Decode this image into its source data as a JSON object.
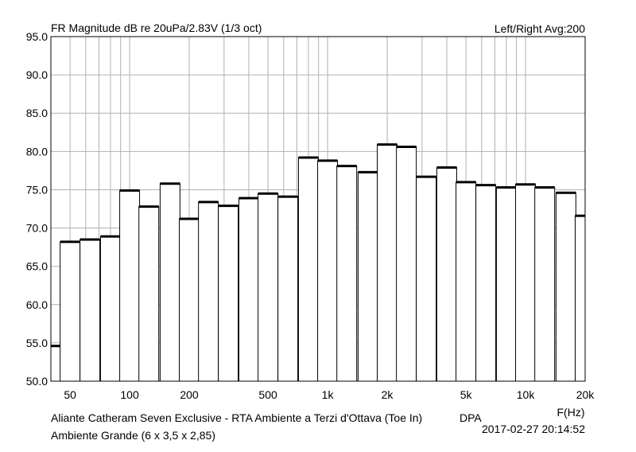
{
  "header": {
    "title": "FR Magnitude dB re 20uPa/2.83V (1/3 oct)",
    "channel_info": "Left/Right  Avg:200"
  },
  "footer": {
    "line1": "Aliante Catheram Seven Exclusive - RTA Ambiente a Terzi d'Ottava  (Toe In)",
    "mic": "DPA",
    "line2": "Ambiente Grande (6 x 3,5 x 2,85)",
    "timestamp": "2017-02-27  20:14:52"
  },
  "chart_data": {
    "type": "bar",
    "title": "FR Magnitude dB re 20uPa/2.83V (1/3 oct)",
    "xlabel": "F(Hz)",
    "ylabel": "",
    "x_scale": "log",
    "xlim": [
      40,
      20000
    ],
    "ylim": [
      50,
      95
    ],
    "y_ticks": [
      "50.0",
      "55.0",
      "60.0",
      "65.0",
      "70.0",
      "75.0",
      "80.0",
      "85.0",
      "90.0",
      "95.0"
    ],
    "x_ticks": [
      {
        "value": 50,
        "label": "50"
      },
      {
        "value": 100,
        "label": "100"
      },
      {
        "value": 200,
        "label": "200"
      },
      {
        "value": 500,
        "label": "500"
      },
      {
        "value": 1000,
        "label": "1k"
      },
      {
        "value": 2000,
        "label": "2k"
      },
      {
        "value": 5000,
        "label": "5k"
      },
      {
        "value": 10000,
        "label": "10k"
      },
      {
        "value": 20000,
        "label": "20k"
      }
    ],
    "grid": true,
    "categories": [
      40,
      50,
      63,
      80,
      100,
      125,
      160,
      200,
      250,
      315,
      400,
      500,
      630,
      800,
      1000,
      1250,
      1600,
      2000,
      2500,
      3150,
      4000,
      5000,
      6300,
      8000,
      10000,
      12500,
      16000,
      20000
    ],
    "values": [
      54.6,
      68.2,
      68.5,
      68.9,
      74.9,
      72.8,
      75.8,
      71.2,
      73.4,
      72.9,
      73.9,
      74.5,
      74.1,
      79.2,
      78.8,
      78.1,
      77.3,
      80.9,
      80.6,
      76.7,
      77.9,
      76.0,
      75.6,
      75.3,
      75.7,
      75.3,
      74.6,
      71.6
    ]
  }
}
